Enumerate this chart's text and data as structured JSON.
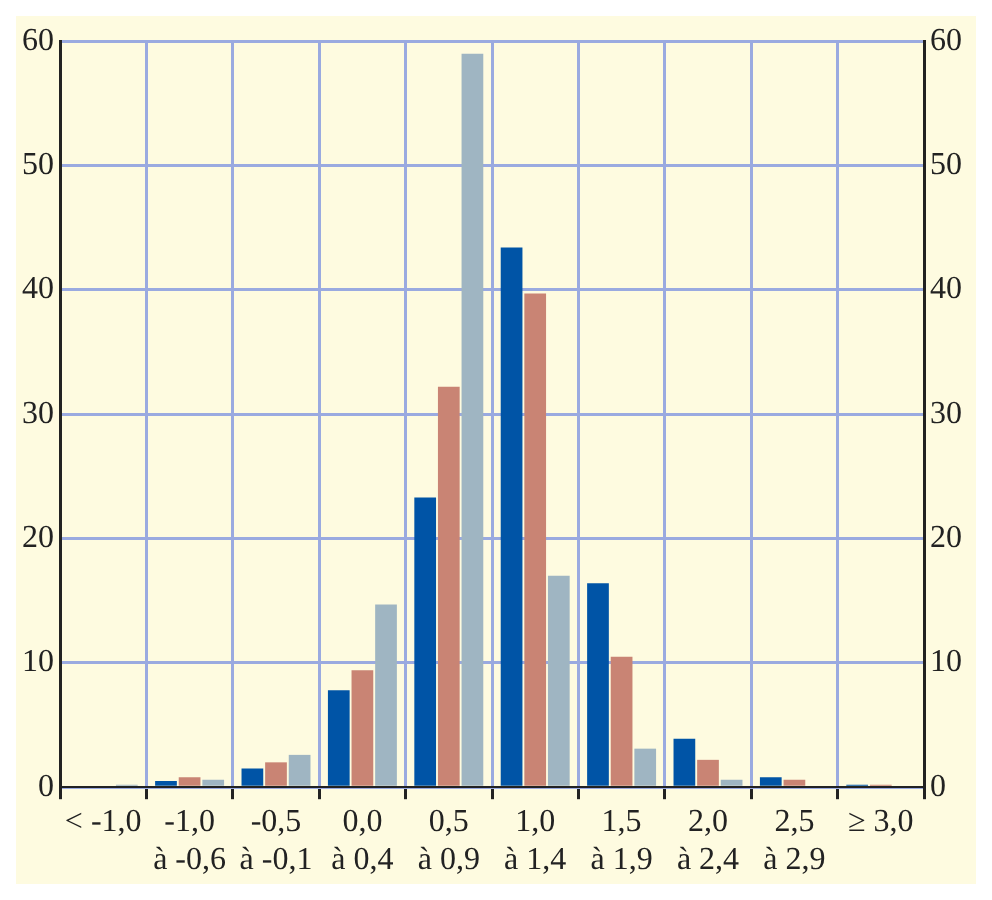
{
  "chart_data": {
    "type": "bar",
    "categories": [
      "< -1,0",
      "-1,0\nà -0,6",
      "-0,5\nà -0,1",
      "0,0\nà 0,4",
      "0,5\nà 0,9",
      "1,0\nà 1,4",
      "1,5\nà 1,9",
      "2,0\nà 2,4",
      "2,5\nà 2,9",
      "≥ 3,0"
    ],
    "series": [
      {
        "color": "#0054a6",
        "values": [
          0,
          0.5,
          1.5,
          7.8,
          23.3,
          43.4,
          16.4,
          3.9,
          0.8,
          0.2
        ]
      },
      {
        "color": "#c98474",
        "values": [
          0,
          0.8,
          2.0,
          9.4,
          32.2,
          39.7,
          10.5,
          2.2,
          0.6,
          0.2
        ]
      },
      {
        "color": "#9fb5c2",
        "values": [
          0.2,
          0.6,
          2.6,
          14.7,
          59.0,
          17.0,
          3.1,
          0.6,
          0,
          0
        ]
      }
    ],
    "ylim": [
      0,
      60
    ],
    "yticks": [
      0,
      10,
      20,
      30,
      40,
      50,
      60
    ],
    "y2lim": [
      0,
      60
    ],
    "y2ticks": [
      0,
      10,
      20,
      30,
      40,
      50,
      60
    ],
    "grid": true,
    "legend": false
  }
}
